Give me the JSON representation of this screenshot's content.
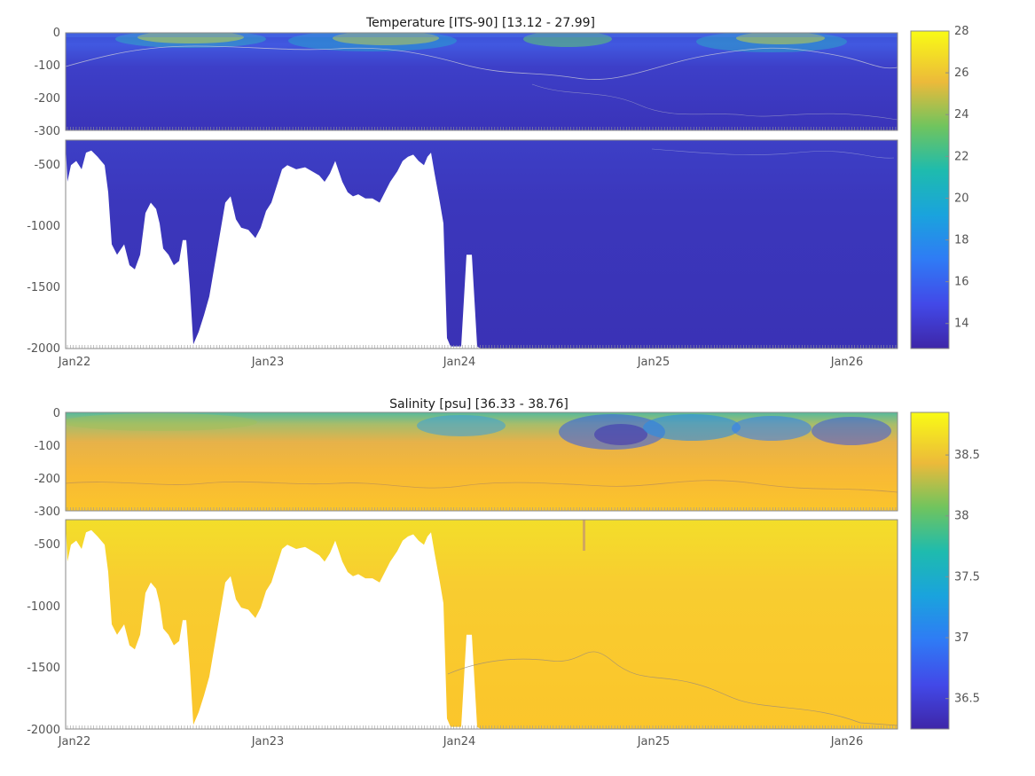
{
  "chart_data": [
    {
      "type": "heatmap",
      "title": "Temperature [ITS-90]   [13.12 - 27.99]",
      "variable": "Temperature",
      "range": [
        13.12,
        27.99
      ],
      "colormap": "parula",
      "upper_panel": {
        "ylim": [
          -300,
          0
        ],
        "yticks": [
          "0",
          "-100",
          "-200",
          "-300"
        ]
      },
      "lower_panel": {
        "ylim": [
          -2000,
          -300
        ],
        "yticks": [
          "-500",
          "-1000",
          "-1500",
          "-2000"
        ]
      },
      "xticks": [
        "Jan22",
        "Jan23",
        "Jan24",
        "Jan25",
        "Jan26"
      ],
      "colorbar": {
        "min": 12.8,
        "max": 28,
        "ticks": [
          "14",
          "16",
          "18",
          "20",
          "22",
          "24",
          "26",
          "28"
        ]
      }
    },
    {
      "type": "heatmap",
      "title": "Salinity [psu]   [36.33 - 38.76]",
      "variable": "Salinity",
      "range": [
        36.33,
        38.76
      ],
      "colormap": "parula",
      "upper_panel": {
        "ylim": [
          -300,
          0
        ],
        "yticks": [
          "0",
          "-100",
          "-200",
          "-300"
        ]
      },
      "lower_panel": {
        "ylim": [
          -2000,
          -300
        ],
        "yticks": [
          "-500",
          "-1000",
          "-1500",
          "-2000"
        ]
      },
      "xticks": [
        "Jan22",
        "Jan23",
        "Jan24",
        "Jan25",
        "Jan26"
      ],
      "colorbar": {
        "min": 36.25,
        "max": 38.85,
        "ticks": [
          "36.5",
          "37",
          "37.5",
          "38",
          "38.5"
        ]
      }
    }
  ]
}
